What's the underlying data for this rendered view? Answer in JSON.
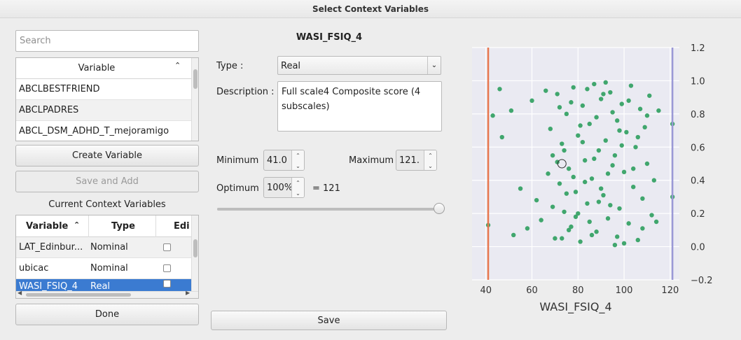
{
  "window": {
    "title": "Select Context Variables"
  },
  "left": {
    "search_placeholder": "Search",
    "var_list_header": "Variable",
    "variables": [
      "ABCLBESTFRIEND",
      "ABCLPADRES",
      "ABCL_DSM_ADHD_T_mejoramigo"
    ],
    "create_button": "Create Variable",
    "save_add_button": "Save and Add",
    "current_title": "Current Context Variables",
    "current_headers": [
      "Variable",
      "Type",
      "Edi"
    ],
    "current_rows": [
      {
        "name": "LAT_Edinbur...",
        "type": "Nominal"
      },
      {
        "name": "ubicac",
        "type": "Nominal"
      },
      {
        "name": "WASI_FSIQ_4",
        "type": "Real"
      }
    ],
    "done_button": "Done"
  },
  "middle": {
    "title": "WASI_FSIQ_4",
    "type_label": "Type :",
    "type_value": "Real",
    "description_label": "Description :",
    "description_value": "Full scale4 Composite score (4 subscales)",
    "minimum_label": "Minimum",
    "minimum_value": "41.0",
    "maximum_label": "Maximum",
    "maximum_value": "121.",
    "optimum_label": "Optimum",
    "optimum_value": "100%",
    "optimum_result": "=  121",
    "optimum_percent": 100,
    "save_button": "Save"
  },
  "chart_data": {
    "type": "scatter",
    "xlabel": "WASI_FSIQ_4",
    "ylabel": "",
    "xlim": [
      34,
      124
    ],
    "ylim": [
      -0.2,
      1.2
    ],
    "xticks": [
      40,
      60,
      80,
      100,
      120
    ],
    "yticks": [
      -0.2,
      0.0,
      0.2,
      0.4,
      0.6,
      0.8,
      1.0,
      1.2
    ],
    "grid": true,
    "vlines": [
      {
        "x": 41,
        "color": "#e8764e"
      },
      {
        "x": 121,
        "color": "#9a98d6"
      }
    ],
    "point_color": "#2e9e5e",
    "highlight": {
      "x": 73,
      "y": 0.5
    },
    "points": [
      {
        "x": 41,
        "y": 0.13
      },
      {
        "x": 43,
        "y": 0.79
      },
      {
        "x": 46,
        "y": 0.95
      },
      {
        "x": 47,
        "y": 0.66
      },
      {
        "x": 51,
        "y": 0.82
      },
      {
        "x": 52,
        "y": 0.07
      },
      {
        "x": 55,
        "y": 0.35
      },
      {
        "x": 58,
        "y": 0.11
      },
      {
        "x": 60,
        "y": 0.88
      },
      {
        "x": 62,
        "y": 0.28
      },
      {
        "x": 64,
        "y": 0.16
      },
      {
        "x": 66,
        "y": 0.94
      },
      {
        "x": 67,
        "y": 0.44
      },
      {
        "x": 68,
        "y": 0.71
      },
      {
        "x": 69,
        "y": 0.55
      },
      {
        "x": 70,
        "y": 0.05
      },
      {
        "x": 71,
        "y": 0.92
      },
      {
        "x": 72,
        "y": 0.38
      },
      {
        "x": 73,
        "y": 0.62
      },
      {
        "x": 74,
        "y": 0.21
      },
      {
        "x": 75,
        "y": 0.8
      },
      {
        "x": 76,
        "y": 0.47
      },
      {
        "x": 77,
        "y": 0.12
      },
      {
        "x": 78,
        "y": 0.96
      },
      {
        "x": 79,
        "y": 0.33
      },
      {
        "x": 80,
        "y": 0.67
      },
      {
        "x": 81,
        "y": 0.03
      },
      {
        "x": 82,
        "y": 0.85
      },
      {
        "x": 83,
        "y": 0.52
      },
      {
        "x": 84,
        "y": 0.26
      },
      {
        "x": 85,
        "y": 0.74
      },
      {
        "x": 86,
        "y": 0.41
      },
      {
        "x": 87,
        "y": 0.98
      },
      {
        "x": 88,
        "y": 0.09
      },
      {
        "x": 89,
        "y": 0.58
      },
      {
        "x": 90,
        "y": 0.89
      },
      {
        "x": 91,
        "y": 0.31
      },
      {
        "x": 92,
        "y": 0.64
      },
      {
        "x": 93,
        "y": 0.17
      },
      {
        "x": 94,
        "y": 0.93
      },
      {
        "x": 95,
        "y": 0.49
      },
      {
        "x": 96,
        "y": 0.01
      },
      {
        "x": 97,
        "y": 0.76
      },
      {
        "x": 98,
        "y": 0.23
      },
      {
        "x": 99,
        "y": 0.86
      },
      {
        "x": 100,
        "y": 0.45
      },
      {
        "x": 101,
        "y": 0.69
      },
      {
        "x": 102,
        "y": 0.14
      },
      {
        "x": 103,
        "y": 0.97
      },
      {
        "x": 104,
        "y": 0.36
      },
      {
        "x": 105,
        "y": 0.6
      },
      {
        "x": 106,
        "y": 0.04
      },
      {
        "x": 107,
        "y": 0.83
      },
      {
        "x": 108,
        "y": 0.29
      },
      {
        "x": 109,
        "y": 0.72
      },
      {
        "x": 110,
        "y": 0.5
      },
      {
        "x": 111,
        "y": 0.91
      },
      {
        "x": 112,
        "y": 0.19
      },
      {
        "x": 113,
        "y": 0.4
      },
      {
        "x": 114,
        "y": 0.15
      },
      {
        "x": 115,
        "y": 0.82
      },
      {
        "x": 121,
        "y": 0.74
      },
      {
        "x": 121,
        "y": 0.3
      },
      {
        "x": 72,
        "y": 0.84
      },
      {
        "x": 74,
        "y": 0.58
      },
      {
        "x": 76,
        "y": 0.1
      },
      {
        "x": 78,
        "y": 0.42
      },
      {
        "x": 80,
        "y": 0.2
      },
      {
        "x": 82,
        "y": 0.63
      },
      {
        "x": 84,
        "y": 0.95
      },
      {
        "x": 86,
        "y": 0.07
      },
      {
        "x": 88,
        "y": 0.78
      },
      {
        "x": 90,
        "y": 0.35
      },
      {
        "x": 92,
        "y": 0.99
      },
      {
        "x": 94,
        "y": 0.25
      },
      {
        "x": 96,
        "y": 0.55
      },
      {
        "x": 98,
        "y": 0.7
      },
      {
        "x": 100,
        "y": 0.02
      },
      {
        "x": 102,
        "y": 0.88
      },
      {
        "x": 104,
        "y": 0.47
      },
      {
        "x": 106,
        "y": 0.66
      },
      {
        "x": 108,
        "y": 0.11
      },
      {
        "x": 110,
        "y": 0.79
      },
      {
        "x": 85,
        "y": 0.15
      },
      {
        "x": 87,
        "y": 0.53
      },
      {
        "x": 89,
        "y": 0.27
      },
      {
        "x": 91,
        "y": 0.92
      },
      {
        "x": 93,
        "y": 0.44
      },
      {
        "x": 95,
        "y": 0.81
      },
      {
        "x": 97,
        "y": 0.06
      },
      {
        "x": 99,
        "y": 0.61
      },
      {
        "x": 83,
        "y": 0.39
      },
      {
        "x": 81,
        "y": 0.73
      },
      {
        "x": 79,
        "y": 0.18
      },
      {
        "x": 77,
        "y": 0.87
      },
      {
        "x": 75,
        "y": 0.32
      },
      {
        "x": 73,
        "y": 0.05
      },
      {
        "x": 71,
        "y": 0.51
      },
      {
        "x": 69,
        "y": 0.24
      }
    ]
  }
}
